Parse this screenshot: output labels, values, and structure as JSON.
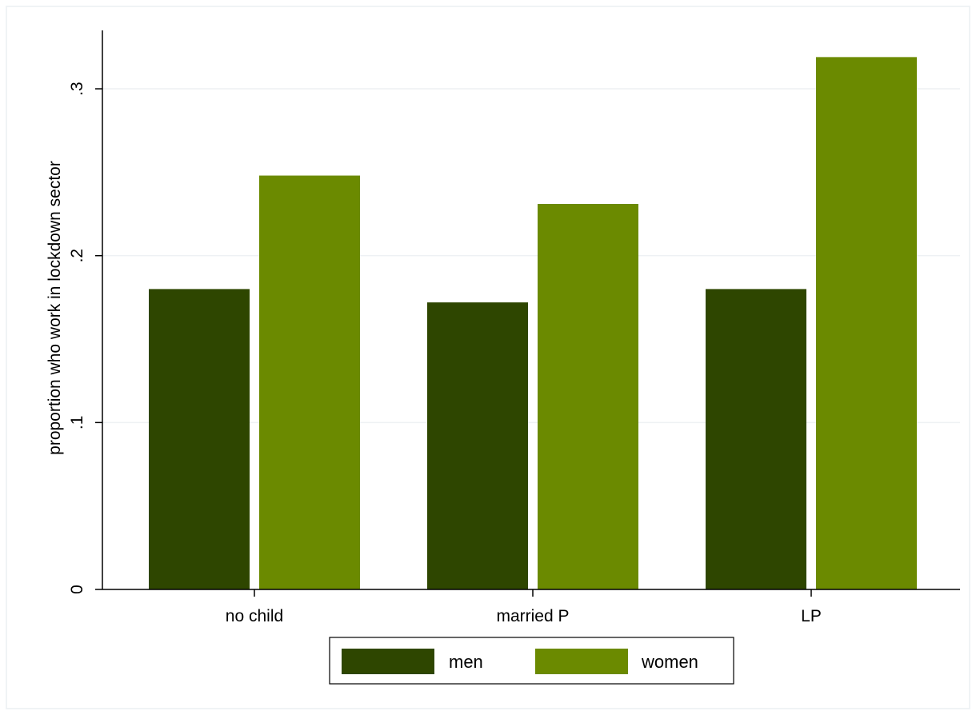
{
  "chart_data": {
    "type": "bar",
    "ylabel": "proportion who work in lockdown sector",
    "xlabel": "",
    "categories": [
      "no child",
      "married P",
      "LP"
    ],
    "series": [
      {
        "name": "men",
        "color": "#2e4600",
        "values": [
          0.18,
          0.172,
          0.18
        ]
      },
      {
        "name": "women",
        "color": "#6b8a00",
        "values": [
          0.248,
          0.231,
          0.319
        ]
      }
    ],
    "ylim": [
      0,
      0.335
    ],
    "yticks": [
      {
        "value": 0,
        "label": "0"
      },
      {
        "value": 0.1,
        "label": ".1"
      },
      {
        "value": 0.2,
        "label": ".2"
      },
      {
        "value": 0.3,
        "label": ".3"
      }
    ],
    "grid": true,
    "legend_position": "bottom"
  }
}
